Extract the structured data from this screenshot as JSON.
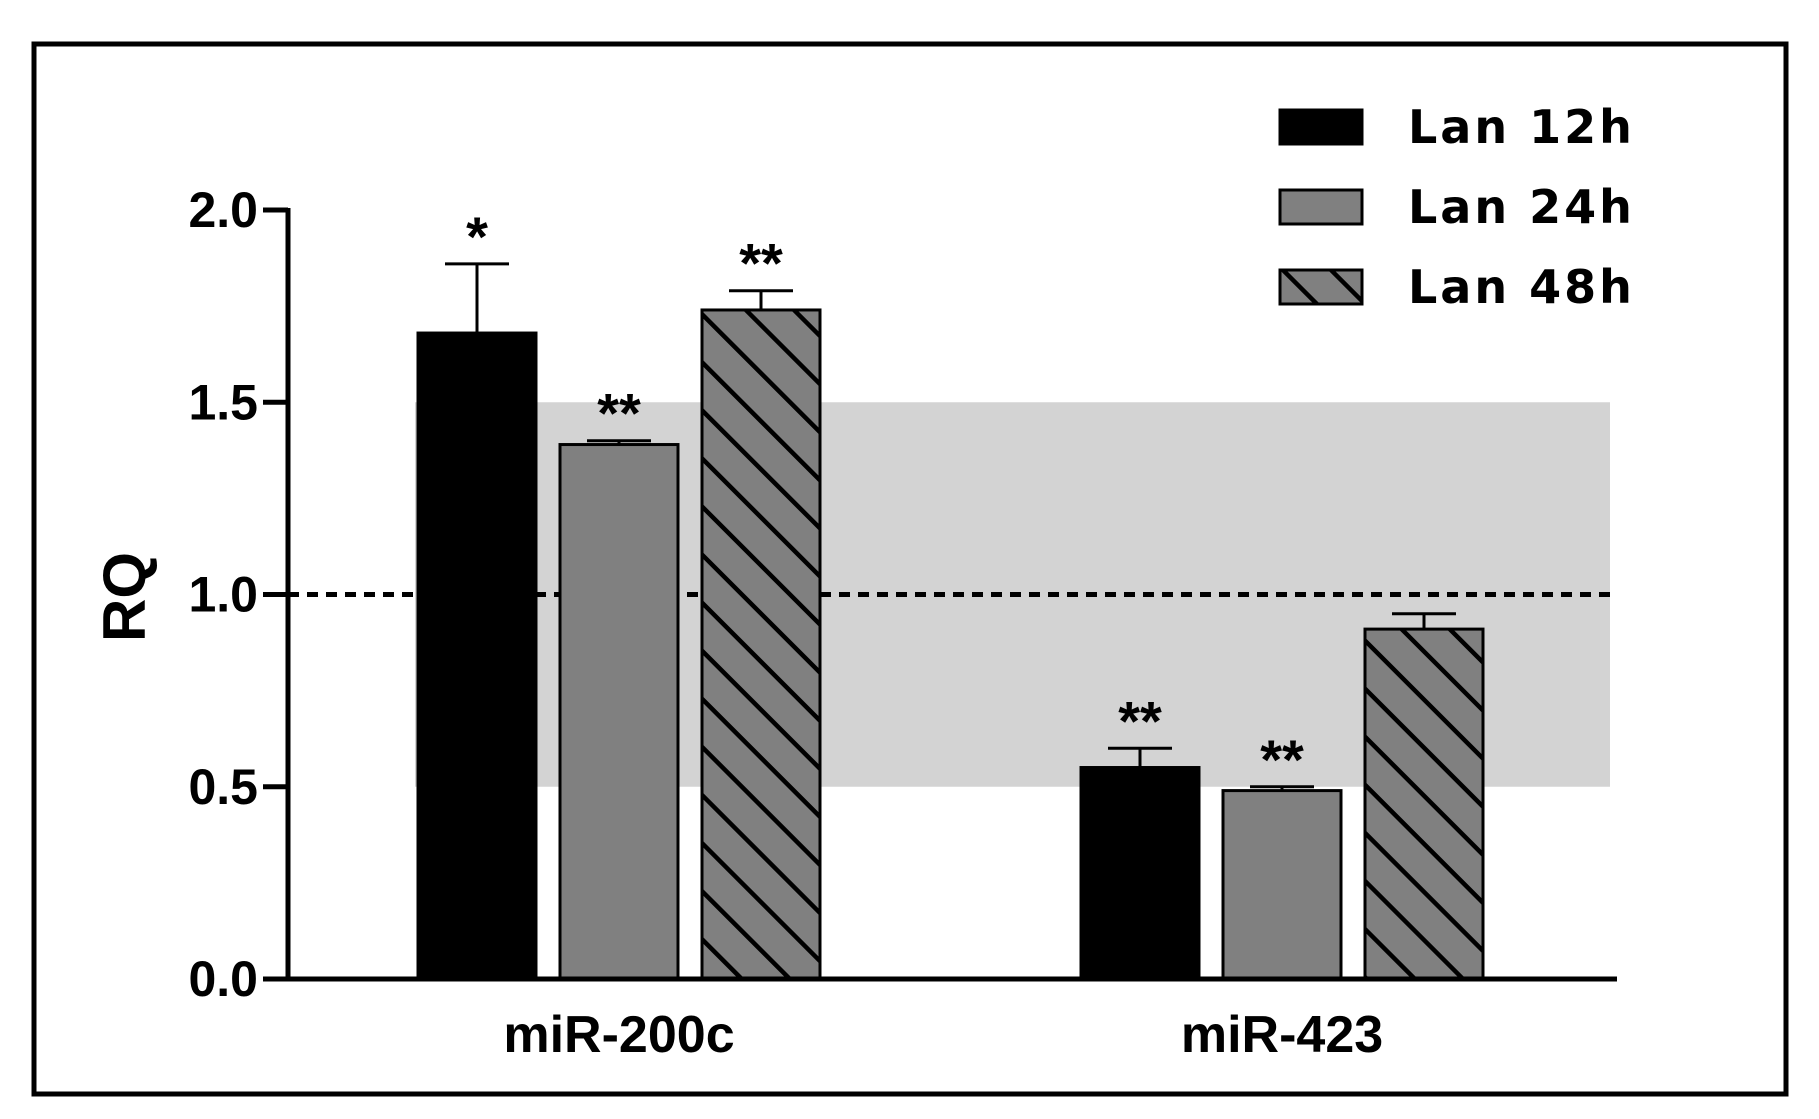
{
  "chart_data": {
    "type": "bar",
    "categories": [
      "miR-200c",
      "miR-423"
    ],
    "series": [
      {
        "name": "Lan 12h",
        "values": [
          1.68,
          0.55
        ],
        "errors": [
          0.18,
          0.05
        ],
        "fill": "#000000",
        "pattern": "solid"
      },
      {
        "name": "Lan 24h",
        "values": [
          1.39,
          0.49
        ],
        "errors": [
          0.01,
          0.01
        ],
        "fill": "#808080",
        "pattern": "solid"
      },
      {
        "name": "Lan 48h",
        "values": [
          1.74,
          0.91
        ],
        "errors": [
          0.05,
          0.04
        ],
        "fill": "#808080",
        "pattern": "hatched"
      }
    ],
    "significance": [
      [
        "*",
        "**"
      ],
      [
        "**",
        "**"
      ],
      [
        "**",
        ""
      ]
    ],
    "ylabel": "RQ",
    "xlabel": "",
    "ylim": [
      0,
      2.0
    ],
    "yticks": [
      "0.0",
      "0.5",
      "1.0",
      "1.5",
      "2.0"
    ],
    "reference_line": 1.0,
    "shaded_band": [
      0.5,
      1.5
    ],
    "band_color": "#d3d3d3",
    "grid": false,
    "legend_position": "top-right"
  }
}
